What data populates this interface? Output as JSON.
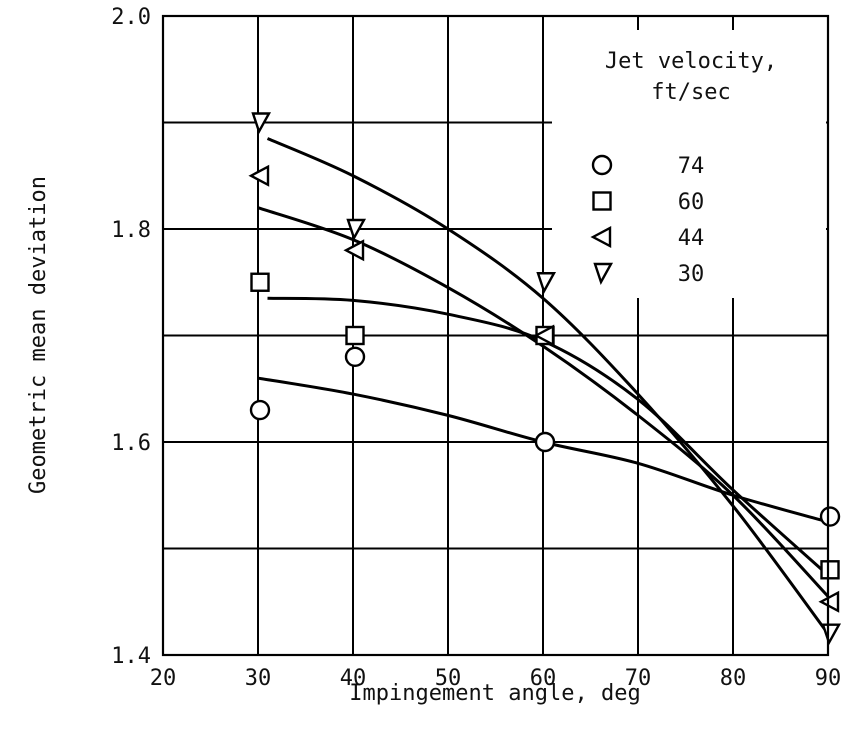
{
  "chart_data": {
    "type": "scatter",
    "title": "",
    "xlabel": "Impingement angle, deg",
    "ylabel": "Geometric mean deviation",
    "xlim": [
      20,
      90
    ],
    "ylim": [
      1.4,
      2.0
    ],
    "xticks": [
      "20",
      "30",
      "40",
      "50",
      "60",
      "70",
      "80",
      "90"
    ],
    "yticks": [
      "1.4",
      "1.6",
      "1.8",
      "2.0"
    ],
    "grid": "horizontal lines every 0.1 and vertical lines every 10 deg",
    "legend": {
      "title_line1": "Jet velocity,",
      "title_line2": "ft/sec",
      "placement": "top-right"
    },
    "series": [
      {
        "name": "74",
        "marker": "circle",
        "x": [
          30,
          40,
          60,
          90
        ],
        "y": [
          1.63,
          1.68,
          1.6,
          1.53
        ],
        "curve": [
          [
            30,
            1.66
          ],
          [
            40,
            1.645
          ],
          [
            50,
            1.625
          ],
          [
            60,
            1.6
          ],
          [
            70,
            1.58
          ],
          [
            80,
            1.55
          ],
          [
            90,
            1.525
          ]
        ]
      },
      {
        "name": "60",
        "marker": "square",
        "x": [
          30,
          40,
          60,
          90
        ],
        "y": [
          1.75,
          1.7,
          1.7,
          1.48
        ],
        "curve": [
          [
            31,
            1.735
          ],
          [
            40,
            1.733
          ],
          [
            50,
            1.72
          ],
          [
            60,
            1.695
          ],
          [
            70,
            1.64
          ],
          [
            80,
            1.555
          ],
          [
            90,
            1.475
          ]
        ]
      },
      {
        "name": "44",
        "marker": "triangle-left",
        "x": [
          30,
          40,
          60,
          90
        ],
        "y": [
          1.85,
          1.78,
          1.7,
          1.45
        ],
        "curve": [
          [
            30,
            1.82
          ],
          [
            40,
            1.79
          ],
          [
            50,
            1.745
          ],
          [
            60,
            1.69
          ],
          [
            70,
            1.625
          ],
          [
            80,
            1.55
          ],
          [
            90,
            1.455
          ]
        ]
      },
      {
        "name": "30",
        "marker": "triangle-down",
        "x": [
          30,
          40,
          60,
          90
        ],
        "y": [
          1.9,
          1.8,
          1.75,
          1.42
        ],
        "curve": [
          [
            31,
            1.885
          ],
          [
            40,
            1.85
          ],
          [
            50,
            1.8
          ],
          [
            60,
            1.735
          ],
          [
            70,
            1.645
          ],
          [
            80,
            1.54
          ],
          [
            90,
            1.42
          ]
        ]
      }
    ]
  }
}
